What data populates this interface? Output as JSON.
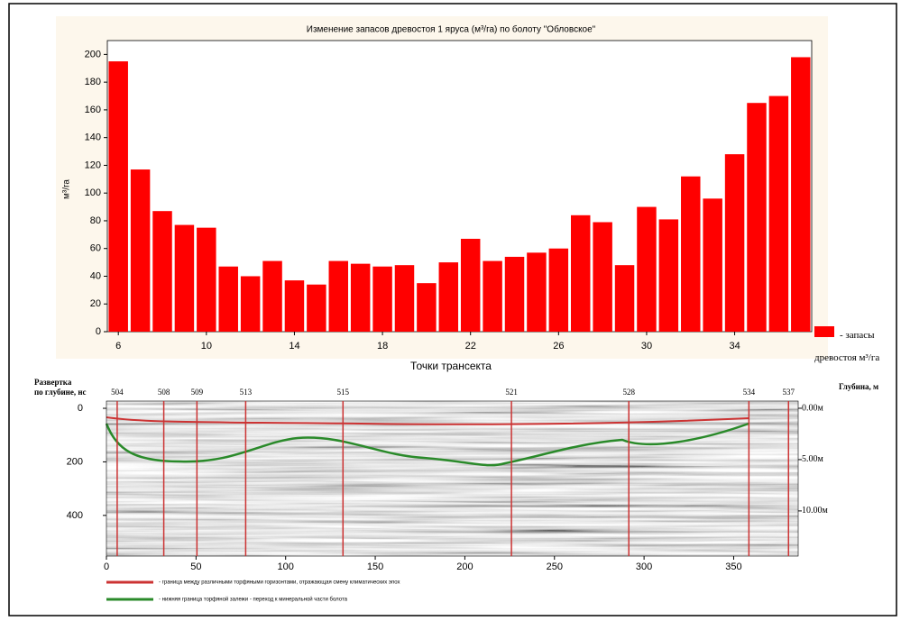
{
  "chart_data": [
    {
      "type": "bar",
      "title": "Изменение запасов древостоя 1 яруса (м³/га) по болоту \"Обловское\"",
      "y_label": "м³/га",
      "x_label": "Точки трансекта",
      "x": [
        6,
        7,
        8,
        9,
        10,
        11,
        12,
        13,
        14,
        15,
        16,
        17,
        18,
        19,
        20,
        21,
        22,
        23,
        24,
        25,
        26,
        27,
        28,
        29,
        30,
        31,
        32,
        33,
        34,
        35,
        36,
        37
      ],
      "series": [
        {
          "name": "- запасы древостоя м³/га",
          "color": "#ff0000",
          "values": [
            195,
            117,
            87,
            77,
            75,
            47,
            40,
            51,
            37,
            34,
            51,
            49,
            47,
            48,
            35,
            50,
            67,
            51,
            54,
            57,
            60,
            84,
            79,
            48,
            90,
            81,
            112,
            96,
            128,
            165,
            170,
            198
          ]
        }
      ],
      "xlim": [
        5.5,
        37.5
      ],
      "xticks": [
        6,
        10,
        14,
        18,
        22,
        26,
        30,
        34
      ],
      "ylim": [
        0,
        210
      ],
      "yticks": [
        0,
        20,
        40,
        60,
        80,
        100,
        120,
        140,
        160,
        180,
        200
      ]
    },
    {
      "type": "radargram",
      "y_label_line1": "Развертка",
      "y_label_line2": "по глубине, нс",
      "y2_label": "Глубина, м",
      "xlim": [
        0,
        386
      ],
      "xticks": [
        0,
        50,
        100,
        150,
        200,
        250,
        300,
        350
      ],
      "ylim": [
        -27,
        552
      ],
      "yticks": [
        0,
        200,
        400
      ],
      "y2lim": [
        -0.7,
        14.4
      ],
      "y2ticks": [
        {
          "value": 0,
          "label": "0.00м"
        },
        {
          "value": 5,
          "label": "5.00м"
        },
        {
          "value": 10,
          "label": "10.00м"
        }
      ],
      "markers": [
        {
          "x": 6,
          "label": "504"
        },
        {
          "x": 32,
          "label": "508"
        },
        {
          "x": 50.5,
          "label": "509"
        },
        {
          "x": 77.7,
          "label": "513"
        },
        {
          "x": 132,
          "label": "515"
        },
        {
          "x": 226,
          "label": "521"
        },
        {
          "x": 291.5,
          "label": "528"
        },
        {
          "x": 358.5,
          "label": "534"
        },
        {
          "x": 380.6,
          "label": "537"
        }
      ],
      "legend": [
        "- граница между различными торфяными горизонтами, отражающая смену климатических эпох",
        "- нижняя граница торфяной залежи - переход к минеральной части болота"
      ]
    }
  ]
}
